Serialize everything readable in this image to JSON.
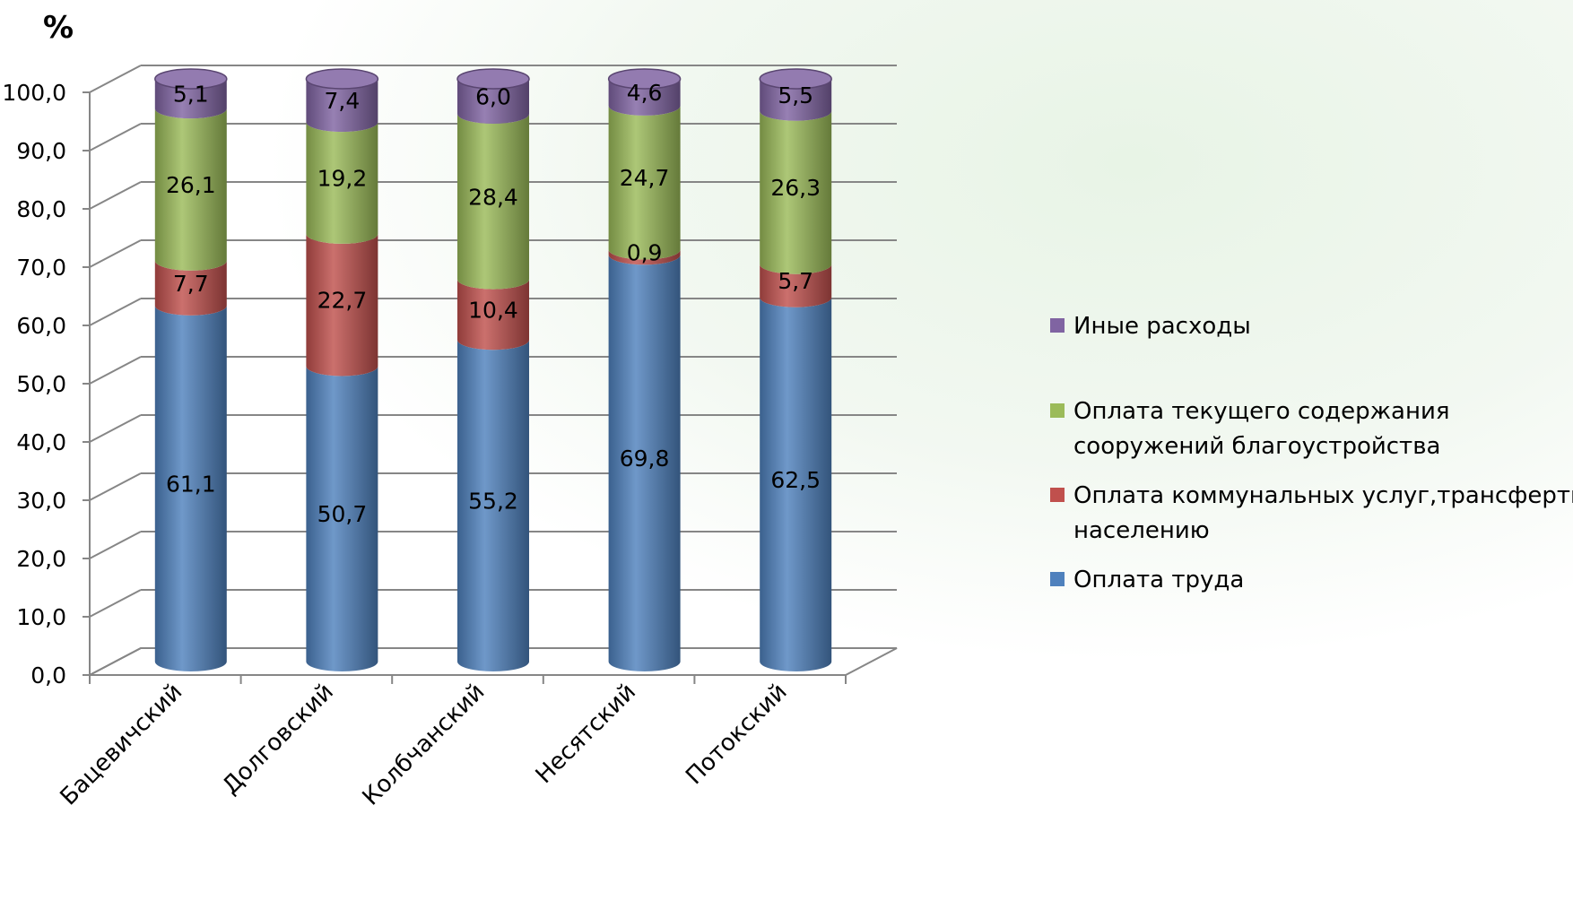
{
  "chart_data": {
    "type": "bar",
    "stacked": true,
    "style": "3d-cylinder",
    "unit_label": "%",
    "categories": [
      "Бацевичский",
      "Долговский",
      "Колбчанский",
      "Несятский",
      "Потокский"
    ],
    "series": [
      {
        "name": "Оплата труда",
        "color": "#4F81BD",
        "values": [
          61.1,
          50.7,
          55.2,
          69.8,
          62.5
        ]
      },
      {
        "name": "Оплата коммунальных услуг,трансферты населению",
        "color": "#C0504D",
        "values": [
          7.7,
          22.7,
          10.4,
          0.9,
          5.7
        ]
      },
      {
        "name": "Оплата текущего содержания сооружений благоустройства",
        "color": "#9BBB59",
        "values": [
          26.1,
          19.2,
          28.4,
          24.7,
          26.3
        ]
      },
      {
        "name": "Иные расходы",
        "color": "#8064A2",
        "values": [
          5.1,
          7.4,
          6.0,
          4.6,
          5.5
        ]
      }
    ],
    "data_labels": [
      [
        "61,1",
        "50,7",
        "55,2",
        "69,8",
        "62,5"
      ],
      [
        "7,7",
        "22,7",
        "10,4",
        "0,9",
        "5,7"
      ],
      [
        "26,1",
        "19,2",
        "28,4",
        "24,7",
        "26,3"
      ],
      [
        "5,1",
        "7,4",
        "6,0",
        "4,6",
        "5,5"
      ]
    ],
    "y_ticks": [
      "0,0",
      "10,0",
      "20,0",
      "30,0",
      "40,0",
      "50,0",
      "60,0",
      "70,0",
      "80,0",
      "90,0",
      "100,0"
    ],
    "ylim": [
      0,
      100
    ],
    "grid": true,
    "legend": {
      "position": "right",
      "entries": [
        {
          "lines": [
            "Иные расходы"
          ],
          "color": "#8064A2"
        },
        {
          "lines": [
            "Оплата текущего содержания",
            "сооружений благоустройства"
          ],
          "color": "#9BBB59"
        },
        {
          "lines": [
            "Оплата коммунальных услуг,трансферты",
            "населению"
          ],
          "color": "#C0504D"
        },
        {
          "lines": [
            "Оплата труда"
          ],
          "color": "#4F81BD"
        }
      ]
    }
  }
}
